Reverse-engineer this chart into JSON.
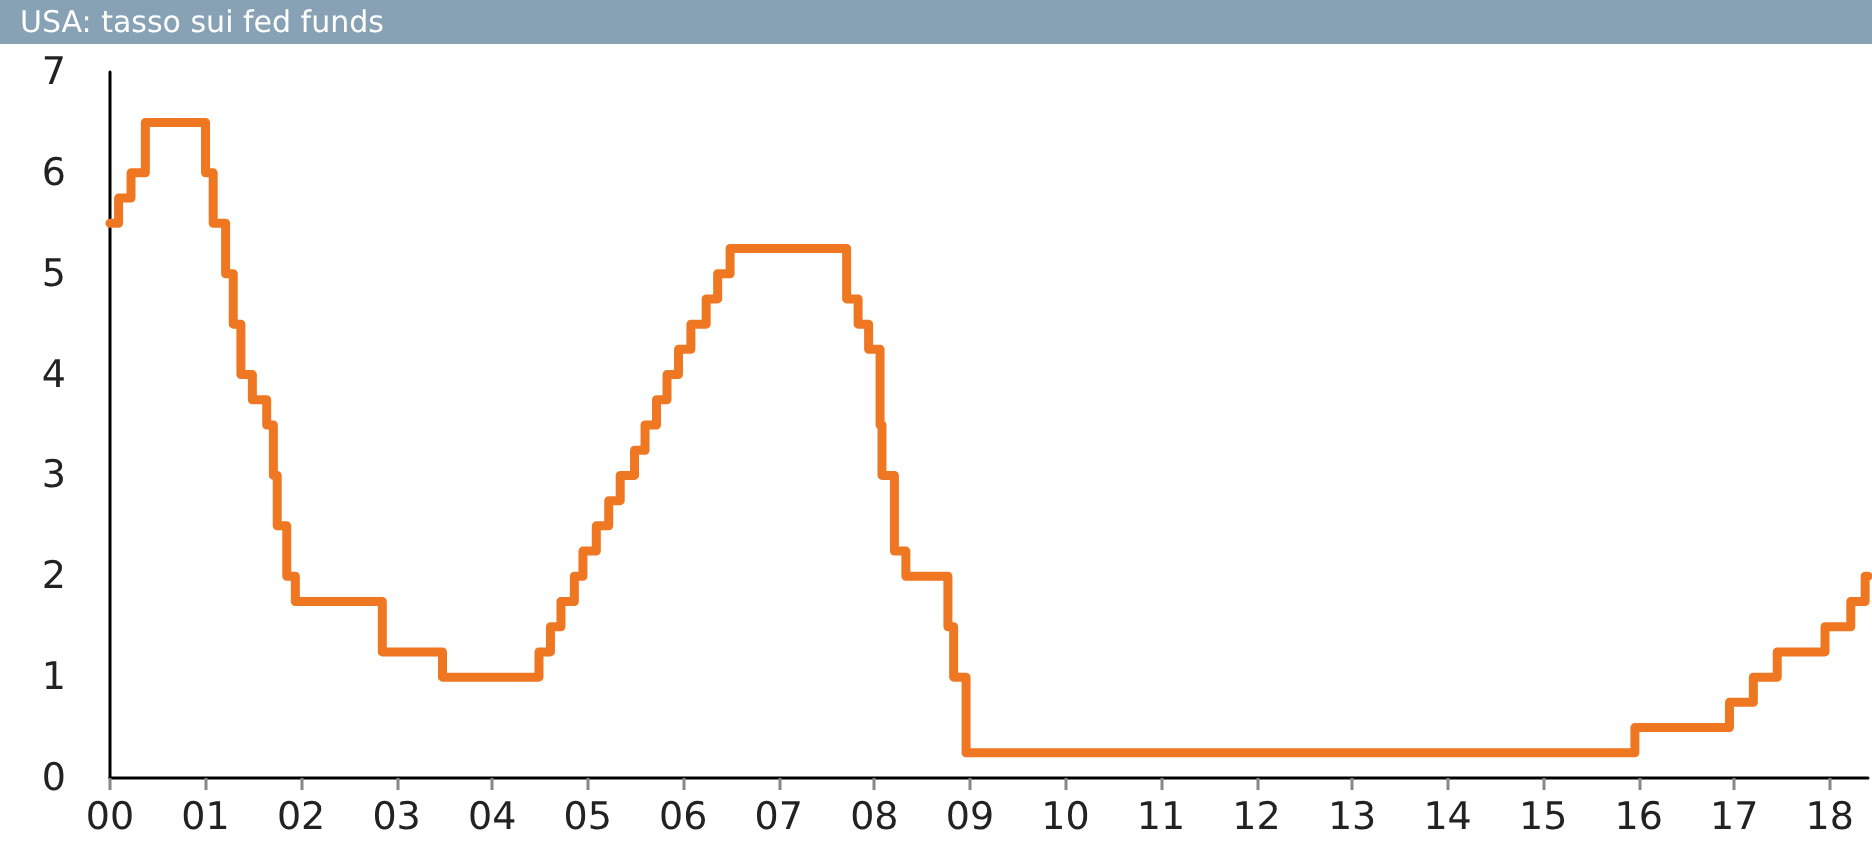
{
  "chart_data": {
    "type": "step",
    "title": "USA: tasso sui fed funds",
    "x": [
      0,
      0.09,
      0.22,
      0.37,
      1.0,
      1.08,
      1.21,
      1.29,
      1.37,
      1.49,
      1.64,
      1.71,
      1.75,
      1.85,
      1.94,
      2.85,
      3.48,
      4.49,
      4.61,
      4.72,
      4.86,
      4.95,
      5.09,
      5.22,
      5.34,
      5.49,
      5.6,
      5.72,
      5.83,
      5.95,
      6.08,
      6.24,
      6.36,
      6.49,
      7.71,
      7.83,
      7.94,
      8.06,
      8.08,
      8.21,
      8.33,
      8.77,
      8.83,
      8.96,
      15.96,
      16.95,
      17.2,
      17.45,
      17.95,
      18.22,
      18.37,
      18.4
    ],
    "series": [
      {
        "color": "#f07722",
        "values": [
          5.5,
          5.75,
          6.0,
          6.5,
          6.0,
          5.5,
          5.0,
          4.5,
          4.0,
          3.75,
          3.5,
          3.0,
          2.5,
          2.0,
          1.75,
          1.25,
          1.0,
          1.25,
          1.5,
          1.75,
          2.0,
          2.25,
          2.5,
          2.75,
          3.0,
          3.25,
          3.5,
          3.75,
          4.0,
          4.25,
          4.5,
          4.75,
          5.0,
          5.25,
          4.75,
          4.5,
          4.25,
          3.5,
          3.0,
          2.25,
          2.0,
          1.5,
          1.0,
          0.25,
          0.5,
          0.75,
          1.0,
          1.25,
          1.5,
          1.75,
          2.0,
          2.0
        ]
      }
    ],
    "xlim": [
      0,
      18.4
    ],
    "xticks": [
      {
        "value": 0,
        "label": "00"
      },
      {
        "value": 1,
        "label": "01"
      },
      {
        "value": 2,
        "label": "02"
      },
      {
        "value": 3,
        "label": "03"
      },
      {
        "value": 4,
        "label": "04"
      },
      {
        "value": 5,
        "label": "05"
      },
      {
        "value": 6,
        "label": "06"
      },
      {
        "value": 7,
        "label": "07"
      },
      {
        "value": 8,
        "label": "08"
      },
      {
        "value": 9,
        "label": "09"
      },
      {
        "value": 10,
        "label": "10"
      },
      {
        "value": 11,
        "label": "11"
      },
      {
        "value": 12,
        "label": "12"
      },
      {
        "value": 13,
        "label": "13"
      },
      {
        "value": 14,
        "label": "14"
      },
      {
        "value": 15,
        "label": "15"
      },
      {
        "value": 16,
        "label": "16"
      },
      {
        "value": 17,
        "label": "17"
      },
      {
        "value": 18,
        "label": "18"
      }
    ],
    "ylim": [
      0,
      7
    ],
    "yticks": [
      0,
      1,
      2,
      3,
      4,
      5,
      6,
      7
    ],
    "marker": "none",
    "line_style": "solid",
    "grid": false
  }
}
